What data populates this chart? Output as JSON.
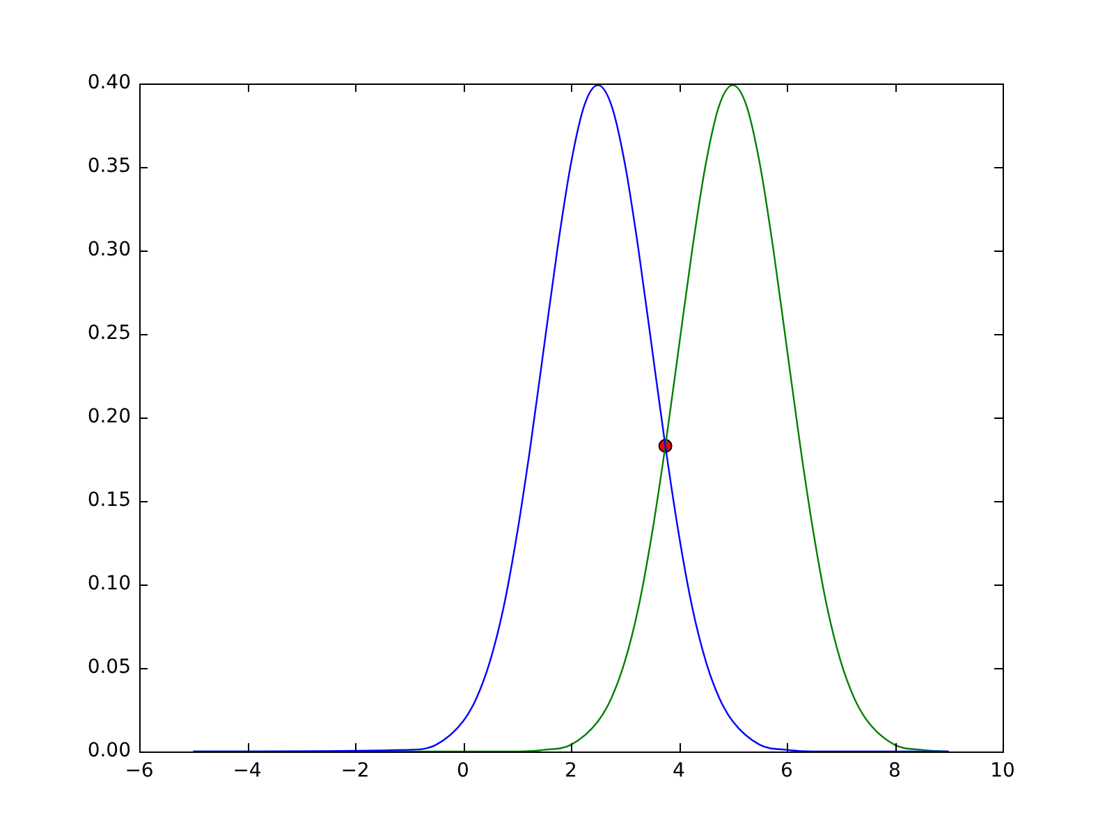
{
  "chart_data": {
    "type": "line",
    "xlim": [
      -6,
      10
    ],
    "ylim": [
      0,
      0.4
    ],
    "xticks": [
      {
        "value": -6,
        "label": "−6"
      },
      {
        "value": -4,
        "label": "−4"
      },
      {
        "value": -2,
        "label": "−2"
      },
      0,
      2,
      4,
      6,
      8,
      10
    ],
    "yticks": [
      {
        "value": 0,
        "label": "0.00"
      },
      0.05,
      {
        "value": 0.1,
        "label": "0.10"
      },
      0.15,
      {
        "value": 0.2,
        "label": "0.20"
      },
      0.25,
      {
        "value": 0.3,
        "label": "0.30"
      },
      0.35,
      {
        "value": 0.4,
        "label": "0.40"
      }
    ],
    "grid": false,
    "legend": false,
    "line_style": "solid",
    "marker": "none",
    "series": [
      {
        "color": "#0000ff",
        "x": [
          -5,
          -1,
          -0.5,
          0,
          0.25,
          0.5,
          0.75,
          1,
          1.25,
          1.5,
          1.75,
          2,
          2.25,
          2.5,
          2.75,
          3,
          3.25,
          3.5,
          3.75,
          4,
          4.25,
          4.5,
          4.75,
          5,
          5.5,
          6,
          6.5,
          9
        ],
        "values": [
          0,
          0.001,
          0.004,
          0.018,
          0.032,
          0.054,
          0.086,
          0.13,
          0.183,
          0.242,
          0.301,
          0.352,
          0.387,
          0.399,
          0.387,
          0.352,
          0.301,
          0.242,
          0.183,
          0.13,
          0.086,
          0.054,
          0.032,
          0.018,
          0.004,
          0.001,
          0,
          0
        ]
      },
      {
        "color": "#008000",
        "x": [
          -5,
          1,
          1.5,
          2,
          2.5,
          2.75,
          3,
          3.25,
          3.5,
          3.75,
          4,
          4.25,
          4.5,
          4.75,
          5,
          5.25,
          5.5,
          5.75,
          6,
          6.25,
          6.5,
          6.75,
          7,
          7.25,
          7.5,
          8,
          8.5,
          9
        ],
        "values": [
          0,
          0,
          0.001,
          0.004,
          0.018,
          0.032,
          0.054,
          0.086,
          0.13,
          0.183,
          0.242,
          0.301,
          0.352,
          0.387,
          0.399,
          0.387,
          0.352,
          0.301,
          0.242,
          0.183,
          0.13,
          0.086,
          0.054,
          0.032,
          0.018,
          0.004,
          0.001,
          0
        ]
      },
      {
        "type": "scatter",
        "color": "#ff0000",
        "marker": "circle",
        "x": [
          3.75
        ],
        "values": [
          0.183
        ]
      }
    ]
  }
}
